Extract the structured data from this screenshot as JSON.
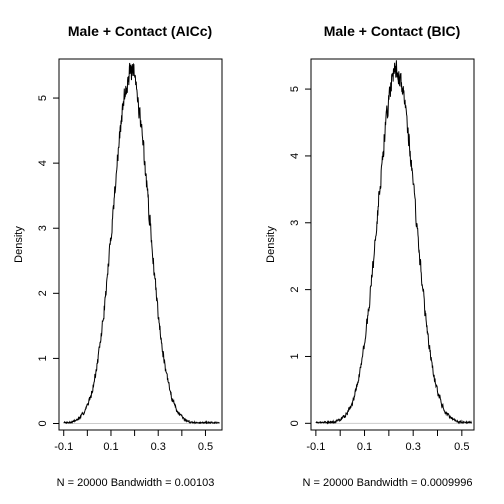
{
  "chart_data": [
    {
      "type": "line",
      "title": "Male + Contact (AICc)",
      "xlabel": "N = 20000   Bandwidth = 0.00103",
      "ylabel": "Density",
      "xlim": [
        -0.12,
        0.57
      ],
      "ylim": [
        -0.1,
        5.6
      ],
      "xticks": [
        -0.1,
        0.0,
        0.1,
        0.2,
        0.3,
        0.4,
        0.5
      ],
      "xtick_labels": [
        "-0.1",
        "",
        "0.1",
        "",
        "0.3",
        "",
        "0.5"
      ],
      "yticks": [
        0,
        1,
        2,
        3,
        4,
        5
      ],
      "ytick_labels": [
        "0",
        "1",
        "2",
        "3",
        "4",
        "5"
      ],
      "grid": false,
      "density": {
        "mean": 0.185,
        "sd": 0.076,
        "peak": 5.38,
        "x_range": [
          -0.1,
          0.56
        ],
        "noise": 0.28,
        "seed": 7
      }
    },
    {
      "type": "line",
      "title": "Male + Contact (BIC)",
      "xlabel": "N = 20000   Bandwidth = 0.0009996",
      "ylabel": "Density",
      "xlim": [
        -0.12,
        0.55
      ],
      "ylim": [
        -0.1,
        5.45
      ],
      "xticks": [
        -0.1,
        0.0,
        0.1,
        0.2,
        0.3,
        0.4,
        0.5
      ],
      "xtick_labels": [
        "-0.1",
        "",
        "0.1",
        "",
        "0.3",
        "",
        "0.5"
      ],
      "yticks": [
        0,
        1,
        2,
        3,
        4,
        5
      ],
      "ytick_labels": [
        "0",
        "1",
        "2",
        "3",
        "4",
        "5"
      ],
      "grid": false,
      "density": {
        "mean": 0.232,
        "sd": 0.077,
        "peak": 5.28,
        "x_range": [
          -0.1,
          0.54
        ],
        "noise": 0.28,
        "seed": 13
      }
    }
  ]
}
